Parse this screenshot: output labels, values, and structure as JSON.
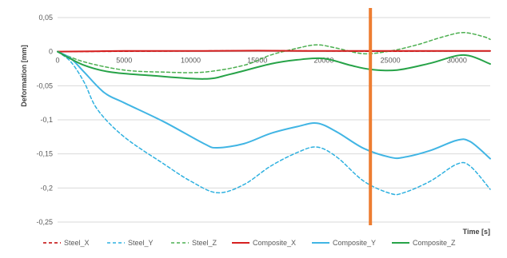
{
  "chart_data": {
    "type": "line",
    "title": "",
    "xlabel": "Time [s]",
    "ylabel": "Deformation [mm]",
    "xlim": [
      0,
      32500
    ],
    "ylim": [
      -0.25,
      0.05
    ],
    "x_ticks": [
      0,
      5000,
      10000,
      15000,
      20000,
      25000,
      30000
    ],
    "x_tick_labels": [
      "0",
      "5000",
      "10000",
      "15000",
      "20000",
      "25000",
      "30000"
    ],
    "y_ticks": [
      0.05,
      0,
      -0.05,
      -0.1,
      -0.15,
      -0.2,
      -0.25
    ],
    "y_tick_labels": [
      "0,05",
      "0",
      "-0,05",
      "-0,1",
      "-0,15",
      "-0,2",
      "-0,25"
    ],
    "grid": {
      "horizontal": true,
      "vertical": false
    },
    "legend_position": "bottom",
    "vertical_marker": {
      "x": 23500,
      "color": "#ED7D31"
    },
    "series": [
      {
        "name": "Steel_X",
        "color": "#C00000",
        "dash": true,
        "x": [
          0,
          5000,
          10000,
          15000,
          20000,
          23500,
          25000,
          30000,
          32500
        ],
        "y": [
          0,
          0.0005,
          0.001,
          0.0015,
          0.001,
          0.0005,
          0.0005,
          0.001,
          0.001
        ]
      },
      {
        "name": "Steel_Y",
        "color": "#2FB1E0",
        "dash": true,
        "x": [
          0,
          1000,
          2000,
          3000,
          5000,
          8000,
          10000,
          12000,
          14000,
          16000,
          18000,
          19500,
          21000,
          23000,
          25000,
          26000,
          28000,
          30000,
          31000,
          32500
        ],
        "y": [
          0,
          -0.015,
          -0.045,
          -0.085,
          -0.125,
          -0.165,
          -0.19,
          -0.207,
          -0.195,
          -0.168,
          -0.148,
          -0.14,
          -0.155,
          -0.19,
          -0.208,
          -0.207,
          -0.19,
          -0.165,
          -0.168,
          -0.202
        ]
      },
      {
        "name": "Steel_Z",
        "color": "#4CAF50",
        "dash": true,
        "x": [
          0,
          2000,
          5000,
          8000,
          11000,
          14000,
          16000,
          18000,
          19500,
          21000,
          23000,
          25000,
          27000,
          29000,
          30500,
          32000,
          32500
        ],
        "y": [
          0,
          -0.015,
          -0.027,
          -0.03,
          -0.03,
          -0.02,
          -0.005,
          0.005,
          0.01,
          0.005,
          -0.003,
          0.001,
          0.01,
          0.022,
          0.028,
          0.022,
          0.018
        ]
      },
      {
        "name": "Composite_X",
        "color": "#D62020",
        "dash": false,
        "x": [
          0,
          5000,
          10000,
          15000,
          20000,
          25000,
          30000,
          32500
        ],
        "y": [
          0,
          0.001,
          0.001,
          0.0015,
          0.001,
          0.001,
          0.001,
          0.001
        ]
      },
      {
        "name": "Composite_Y",
        "color": "#41B5E4",
        "dash": false,
        "x": [
          0,
          1000,
          2000,
          3500,
          5000,
          8000,
          11000,
          12000,
          14000,
          16000,
          18000,
          19500,
          21000,
          23000,
          25000,
          26000,
          28000,
          30000,
          31000,
          32500
        ],
        "y": [
          0,
          -0.01,
          -0.03,
          -0.06,
          -0.075,
          -0.103,
          -0.135,
          -0.141,
          -0.135,
          -0.12,
          -0.11,
          -0.105,
          -0.118,
          -0.142,
          -0.155,
          -0.155,
          -0.145,
          -0.13,
          -0.132,
          -0.157
        ]
      },
      {
        "name": "Composite_Z",
        "color": "#27A348",
        "dash": false,
        "x": [
          0,
          2000,
          4000,
          7000,
          11000,
          13000,
          16000,
          18000,
          20000,
          22000,
          23500,
          25500,
          28000,
          30500,
          32500
        ],
        "y": [
          0,
          -0.02,
          -0.03,
          -0.035,
          -0.04,
          -0.033,
          -0.018,
          -0.012,
          -0.01,
          -0.02,
          -0.026,
          -0.027,
          -0.017,
          -0.005,
          -0.018
        ]
      }
    ]
  }
}
